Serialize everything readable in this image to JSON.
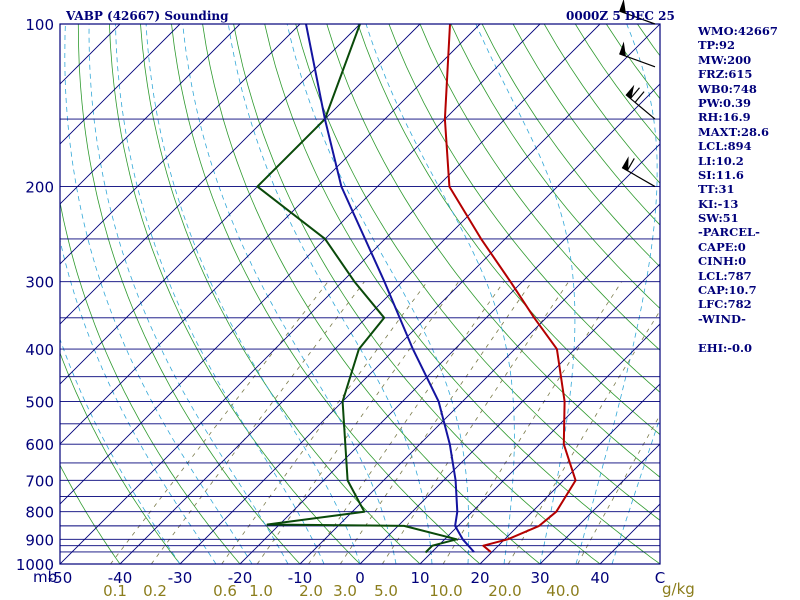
{
  "header": {
    "station": "VABP (42667) Sounding",
    "time": "0000Z  5 DEC 25"
  },
  "side_panel": [
    "WMO:42667",
    "TP:92",
    "MW:200",
    "FRZ:615",
    "WB0:748",
    "PW:0.39",
    "RH:16.9",
    "MAXT:28.6",
    "LCL:894",
    "LI:10.2",
    "SI:11.6",
    "TT:31",
    "KI:-13",
    "SW:51",
    "-PARCEL-",
    "CAPE:0",
    "CINH:0",
    "LCL:787",
    "CAP:10.7",
    "LFC:782",
    "-WIND-",
    "",
    "EHI:-0.0"
  ],
  "units": {
    "pressure": "mb",
    "mixing_ratio": "g/kg"
  },
  "colors": {
    "frame": "#00007a",
    "isobar": "#00007a",
    "isotherm": "#00007a",
    "dry_adiabat": "#2f9a2f",
    "moist_adiabat": "#33a8d8",
    "mixing_ratio": "#7a7a4a",
    "temperature": "#b40000",
    "dewpoint": "#0a4a0a",
    "parcel": "#1414a0",
    "wind": "#000000",
    "axis_text": "#00007a",
    "mixing_text": "#8b7d1c"
  },
  "chart_data": {
    "type": "skew-t",
    "title": "VABP (42667) Sounding",
    "pressure_axis": {
      "label": "mb",
      "scale": "log",
      "range": [
        1000,
        100
      ],
      "ticks": [
        100,
        200,
        300,
        400,
        500,
        600,
        700,
        800,
        900,
        1000
      ]
    },
    "temperature_axis": {
      "range": [
        -50,
        50
      ],
      "ticks": [
        "-50",
        "-40",
        "-30",
        "-20",
        "-10",
        "0",
        "10",
        "20",
        "30",
        "40",
        "C"
      ]
    },
    "mixing_ratio_ticks": [
      "0.1",
      "0.2",
      "0.6",
      "1.0",
      "2.0",
      "3.0",
      "5.0",
      "10.0",
      "20.0",
      "40.0",
      "g/kg"
    ],
    "isobars": [
      100,
      150,
      200,
      250,
      300,
      350,
      400,
      450,
      500,
      550,
      600,
      650,
      700,
      750,
      800,
      850,
      900,
      925,
      950,
      1000
    ],
    "series": [
      {
        "key": "temperature",
        "points": [
          [
            950,
            19.8
          ],
          [
            925,
            17.5
          ],
          [
            900,
            20.5
          ],
          [
            850,
            23.5
          ],
          [
            800,
            24.0
          ],
          [
            700,
            22.0
          ],
          [
            600,
            14.0
          ],
          [
            500,
            7.0
          ],
          [
            400,
            -3.0
          ],
          [
            350,
            -12.0
          ],
          [
            300,
            -22.0
          ],
          [
            250,
            -34.0
          ],
          [
            200,
            -48.0
          ],
          [
            150,
            -60.0
          ],
          [
            100,
            -75.0
          ]
        ]
      },
      {
        "key": "dewpoint",
        "points": [
          [
            952,
            9.0
          ],
          [
            925,
            9.0
          ],
          [
            900,
            12.0
          ],
          [
            850,
            1.0
          ],
          [
            845,
            -22.0
          ],
          [
            800,
            -8.0
          ],
          [
            700,
            -16.0
          ],
          [
            500,
            -30.0
          ],
          [
            400,
            -36.0
          ],
          [
            350,
            -37.0
          ],
          [
            300,
            -48.0
          ],
          [
            250,
            -60.0
          ],
          [
            200,
            -80.0
          ],
          [
            150,
            -80.0
          ],
          [
            100,
            -90.0
          ]
        ]
      },
      {
        "key": "parcel",
        "points": [
          [
            950,
            17.0
          ],
          [
            900,
            13.0
          ],
          [
            850,
            9.5
          ],
          [
            800,
            7.5
          ],
          [
            700,
            2.0
          ],
          [
            600,
            -5.0
          ],
          [
            500,
            -14.0
          ],
          [
            400,
            -27.0
          ],
          [
            300,
            -43.0
          ],
          [
            200,
            -66.0
          ],
          [
            150,
            -80.0
          ],
          [
            100,
            -99.0
          ]
        ]
      }
    ],
    "wind_barbs": [
      {
        "pressure": 100,
        "direction": 290,
        "speed": 50
      },
      {
        "pressure": 120,
        "direction": 290,
        "speed": 50
      },
      {
        "pressure": 150,
        "direction": 310,
        "speed": 70
      },
      {
        "pressure": 200,
        "direction": 300,
        "speed": 65
      }
    ]
  }
}
